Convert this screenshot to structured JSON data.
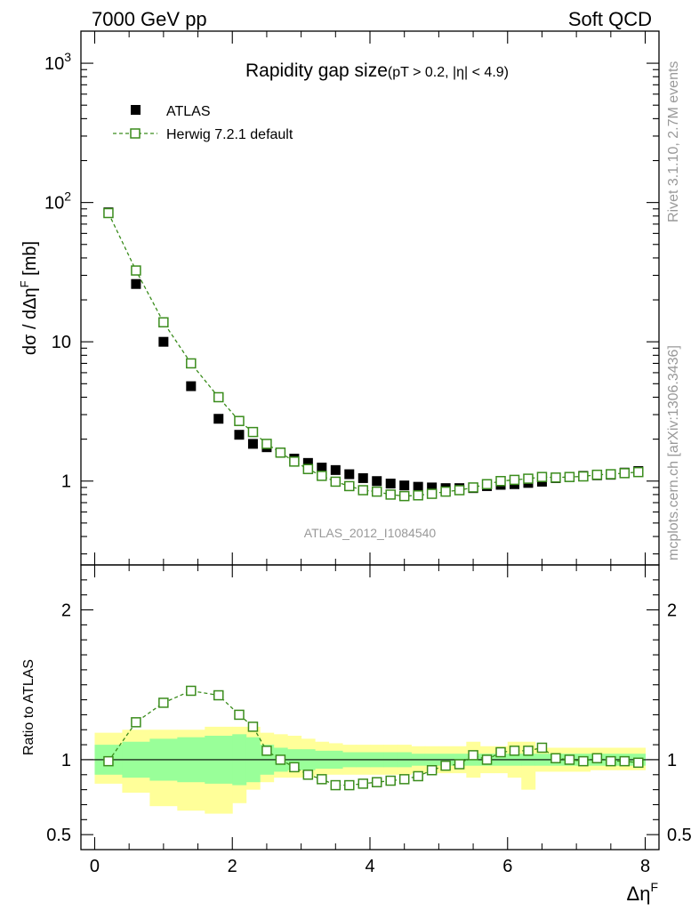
{
  "header": {
    "left": "7000 GeV pp",
    "right": "Soft QCD"
  },
  "side_labels": {
    "rivet": "Rivet 3.1.10,  2.7M events",
    "mcplots": "mcplots.cern.ch [arXiv:1306.3436]"
  },
  "chart_data": {
    "type": "scatter",
    "title": "Rapidity gap size",
    "title_sub": "(pT > 0.2, |η| < 4.9)",
    "analysis_id": "ATLAS_2012_I1084540",
    "xlabel": "Δη",
    "xlabel_sup": "F",
    "xlim": [
      -0.2,
      8.2
    ],
    "x_ticks": [
      "0",
      "2",
      "4",
      "6",
      "8"
    ],
    "main_panel": {
      "ylabel": "dσ / dΔη",
      "ylabel_sup": "F",
      "ylabel_unit": " [mb]",
      "yscale": "log",
      "ylim": [
        0.25,
        1700
      ],
      "y_ticks": [
        {
          "base": "10",
          "exp": "3",
          "value": 1000
        },
        {
          "base": "10",
          "exp": "2",
          "value": 100
        },
        {
          "base": "10",
          "exp": "",
          "value": 10
        },
        {
          "base": "1",
          "exp": "",
          "value": 1
        }
      ]
    },
    "ratio_panel": {
      "ylabel": "Ratio to ATLAS",
      "ylim": [
        0.4,
        2.3
      ],
      "y_ticks": [
        "2",
        "1",
        "0.5"
      ],
      "y_tick_values": [
        2,
        1,
        0.5
      ]
    },
    "x": [
      0.2,
      0.6,
      1.0,
      1.4,
      1.8,
      2.1,
      2.3,
      2.5,
      2.7,
      2.9,
      3.1,
      3.3,
      3.5,
      3.7,
      3.9,
      4.1,
      4.3,
      4.5,
      4.7,
      4.9,
      5.1,
      5.3,
      5.5,
      5.7,
      5.9,
      6.1,
      6.3,
      6.5,
      6.7,
      6.9,
      7.1,
      7.3,
      7.5,
      7.7,
      7.9
    ],
    "x_lo": [
      0.0,
      0.4,
      0.8,
      1.2,
      1.6,
      2.0,
      2.2,
      2.4,
      2.6,
      2.8,
      3.0,
      3.2,
      3.4,
      3.6,
      3.8,
      4.0,
      4.2,
      4.4,
      4.6,
      4.8,
      5.0,
      5.2,
      5.4,
      5.6,
      5.8,
      6.0,
      6.2,
      6.4,
      6.6,
      6.8,
      7.0,
      7.2,
      7.4,
      7.6,
      7.8
    ],
    "x_hi": [
      0.4,
      0.8,
      1.2,
      1.6,
      2.0,
      2.2,
      2.4,
      2.6,
      2.8,
      3.0,
      3.2,
      3.4,
      3.6,
      3.8,
      4.0,
      4.2,
      4.4,
      4.6,
      4.8,
      5.0,
      5.2,
      5.4,
      5.6,
      5.8,
      6.0,
      6.2,
      6.4,
      6.6,
      6.8,
      7.0,
      7.2,
      7.4,
      7.6,
      7.8,
      8.0
    ],
    "series": [
      {
        "name": "ATLAS",
        "marker": "filled-square",
        "color": "#000000",
        "values": [
          85,
          26,
          10,
          4.8,
          2.8,
          2.15,
          1.85,
          1.75,
          1.6,
          1.45,
          1.35,
          1.25,
          1.2,
          1.12,
          1.05,
          1.0,
          0.96,
          0.93,
          0.91,
          0.9,
          0.89,
          0.89,
          0.89,
          0.92,
          0.94,
          0.95,
          0.97,
          0.99,
          1.05,
          1.07,
          1.09,
          1.1,
          1.11,
          1.15,
          1.18
        ]
      },
      {
        "name": "Herwig 7.2.1 default",
        "marker": "open-square",
        "color": "#3a8c1c",
        "values": [
          84,
          32.5,
          13.8,
          7.0,
          4.0,
          2.7,
          2.25,
          1.85,
          1.6,
          1.38,
          1.22,
          1.09,
          0.99,
          0.92,
          0.86,
          0.84,
          0.8,
          0.78,
          0.79,
          0.81,
          0.84,
          0.86,
          0.9,
          0.95,
          1.0,
          1.02,
          1.04,
          1.07,
          1.06,
          1.07,
          1.08,
          1.11,
          1.12,
          1.14,
          1.16
        ]
      }
    ],
    "ratio": [
      0.99,
      1.25,
      1.38,
      1.46,
      1.43,
      1.3,
      1.22,
      1.06,
      1.0,
      0.95,
      0.9,
      0.87,
      0.83,
      0.83,
      0.84,
      0.85,
      0.86,
      0.87,
      0.89,
      0.93,
      0.96,
      0.97,
      1.03,
      1.0,
      1.05,
      1.06,
      1.06,
      1.08,
      1.01,
      1.0,
      0.99,
      1.01,
      0.99,
      0.99,
      0.98
    ],
    "band_inner": [
      [
        0.9,
        1.1
      ],
      [
        0.88,
        1.12
      ],
      [
        0.86,
        1.14
      ],
      [
        0.85,
        1.15
      ],
      [
        0.84,
        1.16
      ],
      [
        0.83,
        1.17
      ],
      [
        0.85,
        1.15
      ],
      [
        0.9,
        1.1
      ],
      [
        0.92,
        1.08
      ],
      [
        0.93,
        1.07
      ],
      [
        0.93,
        1.07
      ],
      [
        0.94,
        1.06
      ],
      [
        0.94,
        1.06
      ],
      [
        0.95,
        1.05
      ],
      [
        0.95,
        1.05
      ],
      [
        0.95,
        1.05
      ],
      [
        0.95,
        1.05
      ],
      [
        0.95,
        1.05
      ],
      [
        0.96,
        1.04
      ],
      [
        0.96,
        1.04
      ],
      [
        0.96,
        1.04
      ],
      [
        0.96,
        1.04
      ],
      [
        0.96,
        1.04
      ],
      [
        0.96,
        1.04
      ],
      [
        0.96,
        1.04
      ],
      [
        0.96,
        1.04
      ],
      [
        0.96,
        1.04
      ],
      [
        0.96,
        1.04
      ],
      [
        0.96,
        1.04
      ],
      [
        0.96,
        1.04
      ],
      [
        0.96,
        1.04
      ],
      [
        0.96,
        1.04
      ],
      [
        0.96,
        1.04
      ],
      [
        0.96,
        1.04
      ],
      [
        0.96,
        1.04
      ]
    ],
    "band_outer": [
      [
        0.84,
        1.18
      ],
      [
        0.78,
        1.2
      ],
      [
        0.69,
        1.2
      ],
      [
        0.66,
        1.2
      ],
      [
        0.64,
        1.22
      ],
      [
        0.71,
        1.22
      ],
      [
        0.8,
        1.22
      ],
      [
        0.85,
        1.18
      ],
      [
        0.88,
        1.17
      ],
      [
        0.88,
        1.16
      ],
      [
        0.88,
        1.14
      ],
      [
        0.9,
        1.12
      ],
      [
        0.9,
        1.11
      ],
      [
        0.9,
        1.1
      ],
      [
        0.9,
        1.1
      ],
      [
        0.9,
        1.1
      ],
      [
        0.9,
        1.1
      ],
      [
        0.9,
        1.1
      ],
      [
        0.91,
        1.09
      ],
      [
        0.91,
        1.09
      ],
      [
        0.91,
        1.09
      ],
      [
        0.91,
        1.09
      ],
      [
        0.88,
        1.12
      ],
      [
        0.91,
        1.09
      ],
      [
        0.91,
        1.09
      ],
      [
        0.88,
        1.12
      ],
      [
        0.8,
        1.12
      ],
      [
        0.92,
        1.08
      ],
      [
        0.92,
        1.08
      ],
      [
        0.92,
        1.08
      ],
      [
        0.92,
        1.08
      ],
      [
        0.93,
        1.08
      ],
      [
        0.93,
        1.08
      ],
      [
        0.93,
        1.08
      ],
      [
        0.93,
        1.08
      ]
    ],
    "band_inner_color": "#99ff99",
    "band_outer_color": "#ffff99",
    "reference_line": 1,
    "legend_position": "top-left"
  }
}
